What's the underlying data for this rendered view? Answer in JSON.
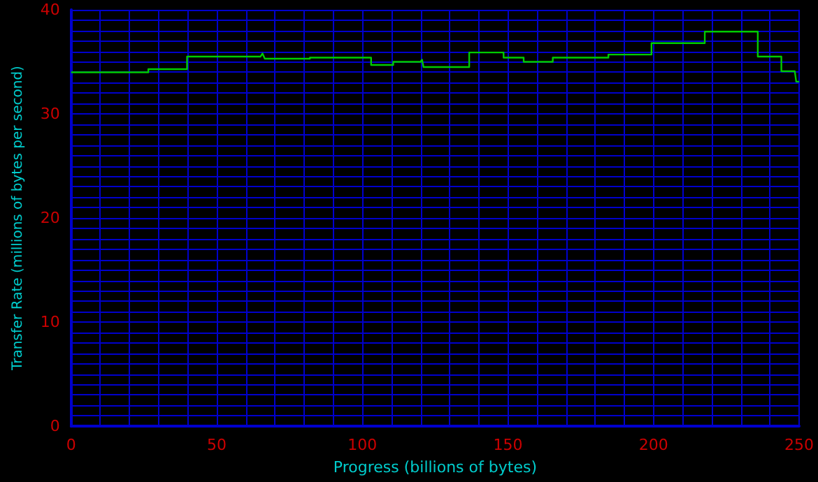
{
  "chart_data": {
    "type": "line",
    "xlabel": "Progress (billions of bytes)",
    "ylabel": "Transfer Rate (millions of bytes per second)",
    "x": [
      0,
      26.5,
      26.5,
      39.8,
      39.8,
      65,
      65.7,
      66.5,
      82,
      82,
      103,
      103,
      110.6,
      110.6,
      120,
      120.5,
      121,
      136.7,
      136.7,
      148.5,
      148.5,
      155.4,
      155.4,
      165.4,
      165.4,
      184.5,
      184.5,
      199.3,
      199.3,
      217.6,
      217.6,
      235.8,
      235.8,
      243.9,
      243.9,
      248.5,
      249,
      250
    ],
    "series": [
      {
        "color": "#00cc00",
        "values": [
          34.0,
          34.0,
          34.3,
          34.3,
          35.5,
          35.5,
          35.8,
          35.3,
          35.3,
          35.4,
          35.4,
          34.7,
          34.7,
          35.0,
          35.0,
          35.2,
          34.5,
          34.5,
          35.9,
          35.9,
          35.4,
          35.4,
          35.0,
          35.0,
          35.4,
          35.4,
          35.7,
          35.7,
          36.8,
          36.8,
          37.9,
          37.9,
          35.5,
          35.5,
          34.1,
          34.1,
          33.1,
          33.1
        ]
      }
    ],
    "xlim": [
      0,
      250
    ],
    "xticks": [
      0,
      {
        "value": 10,
        "label": null
      },
      {
        "value": 20,
        "label": null
      },
      {
        "value": 30,
        "label": null
      },
      {
        "value": 40,
        "label": null
      },
      50,
      {
        "value": 60,
        "label": null
      },
      {
        "value": 70,
        "label": null
      },
      {
        "value": 80,
        "label": null
      },
      {
        "value": 90,
        "label": null
      },
      100,
      {
        "value": 110,
        "label": null
      },
      {
        "value": 120,
        "label": null
      },
      {
        "value": 130,
        "label": null
      },
      {
        "value": 140,
        "label": null
      },
      150,
      {
        "value": 160,
        "label": null
      },
      {
        "value": 170,
        "label": null
      },
      {
        "value": 180,
        "label": null
      },
      {
        "value": 190,
        "label": null
      },
      200,
      {
        "value": 210,
        "label": null
      },
      {
        "value": 220,
        "label": null
      },
      {
        "value": 230,
        "label": null
      },
      {
        "value": 240,
        "label": null
      },
      250
    ],
    "ylim": [
      0,
      40
    ],
    "yticks": [
      0,
      {
        "value": 1,
        "label": null
      },
      {
        "value": 2,
        "label": null
      },
      {
        "value": 3,
        "label": null
      },
      {
        "value": 4,
        "label": null
      },
      {
        "value": 5,
        "label": null
      },
      {
        "value": 6,
        "label": null
      },
      {
        "value": 7,
        "label": null
      },
      {
        "value": 8,
        "label": null
      },
      {
        "value": 9,
        "label": null
      },
      10,
      {
        "value": 11,
        "label": null
      },
      {
        "value": 12,
        "label": null
      },
      {
        "value": 13,
        "label": null
      },
      {
        "value": 14,
        "label": null
      },
      {
        "value": 15,
        "label": null
      },
      {
        "value": 16,
        "label": null
      },
      {
        "value": 17,
        "label": null
      },
      {
        "value": 18,
        "label": null
      },
      {
        "value": 19,
        "label": null
      },
      20,
      {
        "value": 21,
        "label": null
      },
      {
        "value": 22,
        "label": null
      },
      {
        "value": 23,
        "label": null
      },
      {
        "value": 24,
        "label": null
      },
      {
        "value": 25,
        "label": null
      },
      {
        "value": 26,
        "label": null
      },
      {
        "value": 27,
        "label": null
      },
      {
        "value": 28,
        "label": null
      },
      {
        "value": 29,
        "label": null
      },
      30,
      {
        "value": 31,
        "label": null
      },
      {
        "value": 32,
        "label": null
      },
      {
        "value": 33,
        "label": null
      },
      {
        "value": 34,
        "label": null
      },
      {
        "value": 35,
        "label": null
      },
      {
        "value": 36,
        "label": null
      },
      {
        "value": 37,
        "label": null
      },
      {
        "value": 38,
        "label": null
      },
      {
        "value": 39,
        "label": null
      },
      40
    ],
    "grid": true,
    "marker": "none",
    "line_style": "solid"
  }
}
